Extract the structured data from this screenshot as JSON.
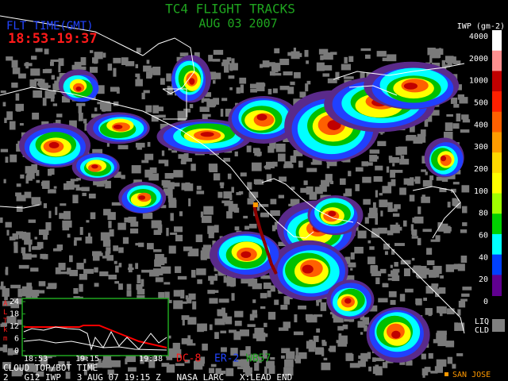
{
  "title": "TC4 FLIGHT TRACKS",
  "date": "AUG 03 2007",
  "flight_time_label": "FLT TIME(GMT)",
  "flight_time_range": "18:53-19:37",
  "colorbar": {
    "unit": "IWP (gm-2)",
    "labels": [
      4000,
      2000,
      1000,
      500,
      400,
      300,
      200,
      100,
      80,
      60,
      40,
      20,
      0
    ],
    "colors": [
      "#ffffff",
      "#ff9090",
      "#c00000",
      "#ff2000",
      "#ff6000",
      "#ff9c00",
      "#ffd800",
      "#ffff00",
      "#a0ff00",
      "#00d000",
      "#00ffff",
      "#0040ff",
      "#600090"
    ],
    "liquid_label": "LIQ",
    "cloud_label": "CLD"
  },
  "inset": {
    "axis_label": "ALTkm",
    "yticks": [
      0,
      6,
      12,
      18,
      24
    ],
    "xticks": [
      "18:53",
      "19:15",
      "19:38"
    ],
    "caption": "CLOUD TOP/BOT TIME"
  },
  "aircraft": [
    "DC-8",
    "ER-2",
    "WB57"
  ],
  "footer": "2   G12 IWP   3 AUG 07 19:15 Z   NASA LARC   X:LEAD END",
  "marker_label": "SAN JOSE"
}
